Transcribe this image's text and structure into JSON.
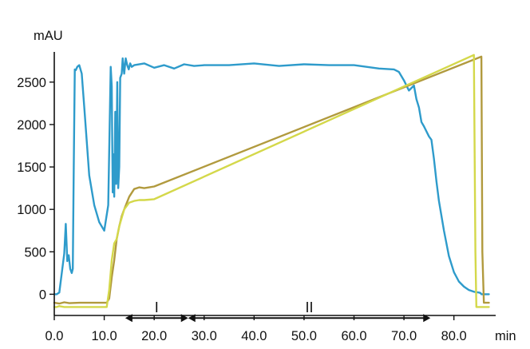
{
  "chart_data": {
    "type": "line",
    "title": "",
    "xlabel": "min",
    "ylabel": "mAU",
    "xlim": [
      0,
      89
    ],
    "ylim": [
      -250,
      2950
    ],
    "x_ticks": [
      0,
      10,
      20,
      30,
      40,
      50,
      60,
      70,
      80
    ],
    "x_tick_labels": [
      "0.0",
      "10.0",
      "20.0",
      "30.0",
      "40.0",
      "50.0",
      "60.0",
      "70.0",
      "80.0"
    ],
    "y_ticks": [
      0,
      500,
      1000,
      1500,
      2000,
      2500
    ],
    "y_tick_labels": [
      "0",
      "500",
      "1000",
      "1500",
      "2000",
      "2500"
    ],
    "grid": false,
    "legend": "none",
    "series": [
      {
        "color": "#2E9BCB",
        "x": [
          0,
          0.5,
          1,
          1.5,
          2,
          2.3,
          2.6,
          2.9,
          3.2,
          3.5,
          3.7,
          3.9,
          4.1,
          4.3,
          4.6,
          5,
          5.5,
          6,
          6.5,
          7,
          8,
          9,
          10,
          10.8,
          11.3,
          11.5,
          11.7,
          11.8,
          12,
          12.2,
          12.4,
          12.6,
          12.8,
          13,
          13.2,
          13.5,
          13.7,
          14,
          14.3,
          14.6,
          14.9,
          15.2,
          15.5,
          16,
          18,
          20,
          22,
          24,
          26,
          28,
          30,
          35,
          40,
          45,
          50,
          55,
          60,
          65,
          68,
          69,
          70,
          71,
          72,
          72.5,
          73,
          73.5,
          74,
          75,
          75.5,
          76,
          76.5,
          77,
          78,
          79,
          80,
          81,
          82,
          83,
          84,
          85,
          85.3,
          85.5,
          86,
          87
        ],
        "y": [
          0,
          0,
          20,
          250,
          480,
          830,
          390,
          460,
          300,
          250,
          300,
          1500,
          2650,
          2640,
          2680,
          2700,
          2600,
          2200,
          1800,
          1400,
          1050,
          850,
          750,
          1050,
          2680,
          2450,
          1200,
          1650,
          1150,
          2150,
          1300,
          2500,
          1250,
          1500,
          2550,
          2600,
          2780,
          2600,
          2780,
          2700,
          2650,
          2720,
          2680,
          2700,
          2720,
          2670,
          2700,
          2660,
          2710,
          2690,
          2700,
          2700,
          2720,
          2690,
          2710,
          2700,
          2700,
          2660,
          2650,
          2620,
          2520,
          2400,
          2460,
          2300,
          2200,
          2030,
          1980,
          1860,
          1820,
          1600,
          1330,
          1100,
          750,
          450,
          260,
          150,
          90,
          50,
          30,
          20,
          15,
          0,
          0,
          0
        ]
      },
      {
        "color": "#B19A3E",
        "x": [
          0,
          1,
          2,
          3,
          5,
          9,
          10.5,
          11,
          11.5,
          12,
          12.5,
          13,
          13.5,
          14,
          15,
          16,
          17,
          18,
          19,
          20,
          85.5,
          85.7,
          86,
          87
        ],
        "y": [
          -100,
          -110,
          -95,
          -105,
          -100,
          -100,
          -100,
          -50,
          200,
          400,
          650,
          800,
          920,
          1000,
          1150,
          1240,
          1260,
          1250,
          1260,
          1270,
          2800,
          500,
          -100,
          -100
        ]
      },
      {
        "color": "#D4D84A",
        "x": [
          0,
          0.5,
          1,
          2,
          5,
          9,
          10.5,
          11,
          11.5,
          12,
          12.5,
          13,
          13.5,
          14,
          15,
          16,
          17,
          18,
          19,
          20,
          84,
          84.3,
          84.5,
          87
        ],
        "y": [
          -150,
          -150,
          -140,
          -150,
          -150,
          -150,
          -150,
          50,
          400,
          600,
          650,
          800,
          900,
          1000,
          1080,
          1100,
          1110,
          1110,
          1115,
          1120,
          2820,
          500,
          -150,
          -150
        ]
      }
    ],
    "annotations": [
      {
        "label": "I",
        "x_start": 14.2,
        "x_end": 26.8,
        "y": -280
      },
      {
        "label": "II",
        "x_start": 26.8,
        "x_end": 75.3,
        "y": -280
      }
    ]
  }
}
